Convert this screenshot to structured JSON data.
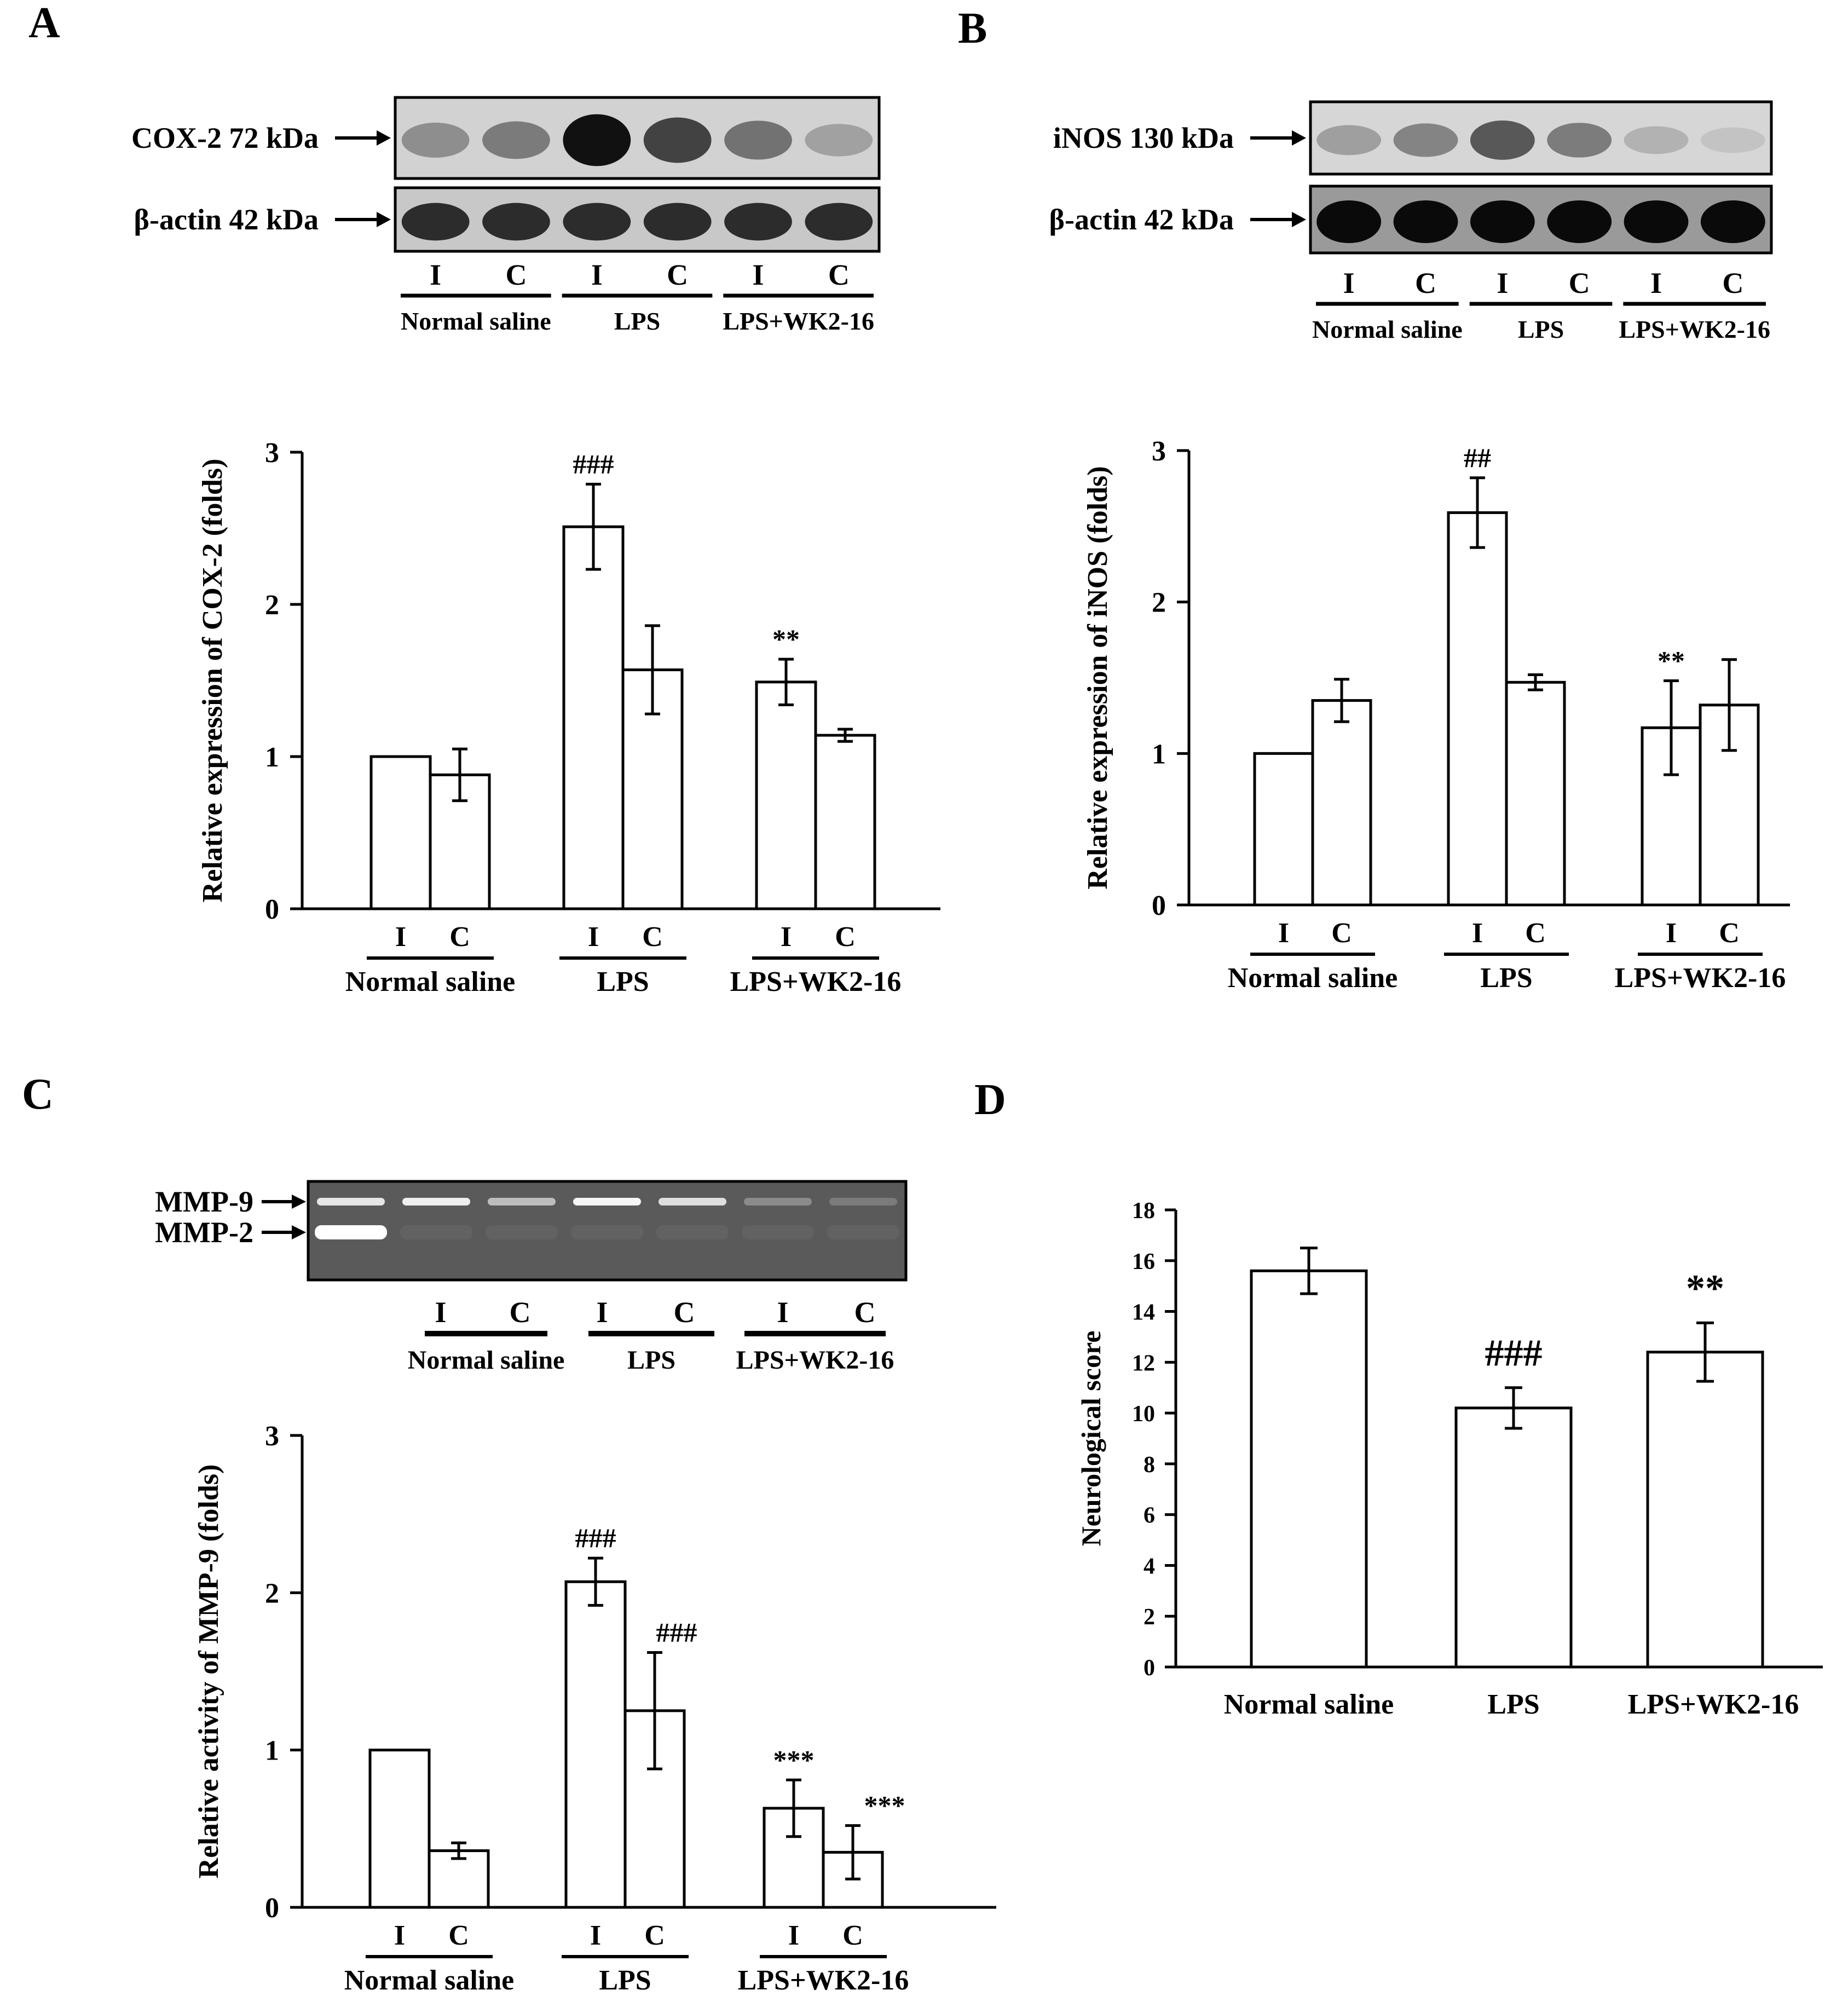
{
  "panels": {
    "A": {
      "label": "A",
      "blot": {
        "rows": [
          {
            "label": "COX-2 72 kDa",
            "intensities": [
              0.35,
              0.45,
              1.0,
              0.75,
              0.5,
              0.25
            ],
            "bg": "#d2d2d2",
            "band": "#111111"
          },
          {
            "label": "β-actin 42 kDa",
            "intensities": [
              0.85,
              0.85,
              0.85,
              0.85,
              0.85,
              0.85
            ],
            "bg": "#c8c8c8",
            "band": "#111111"
          }
        ],
        "lanes": [
          "I",
          "C",
          "I",
          "C",
          "I",
          "C"
        ],
        "groups": [
          "Normal saline",
          "LPS",
          "LPS+WK2-16"
        ]
      }
    },
    "B": {
      "label": "B",
      "blot": {
        "rows": [
          {
            "label": "iNOS 130 kDa",
            "intensities": [
              0.3,
              0.45,
              0.7,
              0.5,
              0.2,
              0.1
            ],
            "bg": "#d6d6d6",
            "band": "#222222"
          },
          {
            "label": "β-actin 42 kDa",
            "intensities": [
              1.0,
              1.0,
              1.0,
              1.0,
              1.0,
              1.0
            ],
            "bg": "#9a9a9a",
            "band": "#0a0a0a"
          }
        ],
        "lanes": [
          "I",
          "C",
          "I",
          "C",
          "I",
          "C"
        ],
        "groups": [
          "Normal saline",
          "LPS",
          "LPS+WK2-16"
        ]
      }
    },
    "C": {
      "label": "C",
      "gel": {
        "labels": [
          "MMP-9",
          "MMP-2"
        ],
        "mmp9": [
          0.85,
          0.9,
          0.6,
          0.95,
          0.8,
          0.3,
          0.2
        ],
        "mmp2": [
          1.0,
          0.05,
          0.05,
          0.05,
          0.05,
          0.05,
          0.05
        ],
        "lanes": [
          "I",
          "C",
          "I",
          "C",
          "I",
          "C"
        ],
        "groups": [
          "Normal saline",
          "LPS",
          "LPS+WK2-16"
        ]
      }
    },
    "D": {
      "label": "D"
    }
  },
  "chart_data": [
    {
      "panel": "A",
      "type": "bar",
      "ylabel": "Relative expression of COX-2 (folds)",
      "ylim": [
        0,
        3
      ],
      "yticks": [
        "0",
        "1",
        "2",
        "3"
      ],
      "groups": [
        "Normal saline",
        "LPS",
        "LPS+WK2-16"
      ],
      "bar_labels": [
        "I",
        "C",
        "I",
        "C",
        "I",
        "C"
      ],
      "values": [
        1.0,
        0.88,
        2.51,
        1.57,
        1.49,
        1.14
      ],
      "errors": [
        0,
        0.17,
        0.28,
        0.29,
        0.15,
        0.04
      ],
      "annotations": [
        "",
        "",
        "###",
        "",
        "**",
        ""
      ]
    },
    {
      "panel": "B",
      "type": "bar",
      "ylabel": "Relative expression of iNOS (folds)",
      "ylim": [
        0,
        3
      ],
      "yticks": [
        "0",
        "1",
        "2",
        "3"
      ],
      "groups": [
        "Normal saline",
        "LPS",
        "LPS+WK2-16"
      ],
      "bar_labels": [
        "I",
        "C",
        "I",
        "C",
        "I",
        "C"
      ],
      "values": [
        1.0,
        1.35,
        2.59,
        1.47,
        1.17,
        1.32
      ],
      "errors": [
        0,
        0.14,
        0.23,
        0.05,
        0.31,
        0.3
      ],
      "annotations": [
        "",
        "",
        "##",
        "",
        "**",
        ""
      ]
    },
    {
      "panel": "C",
      "type": "bar",
      "ylabel": "Relative activity of MMP-9 (folds)",
      "ylim": [
        0,
        3
      ],
      "yticks": [
        "0",
        "1",
        "2",
        "3"
      ],
      "groups": [
        "Normal saline",
        "LPS",
        "LPS+WK2-16"
      ],
      "bar_labels": [
        "I",
        "C",
        "I",
        "C",
        "I",
        "C"
      ],
      "values": [
        1.0,
        0.36,
        2.07,
        1.25,
        0.63,
        0.35
      ],
      "errors": [
        0,
        0.05,
        0.15,
        0.37,
        0.18,
        0.17
      ],
      "annotations": [
        "",
        "",
        "###",
        "###",
        "***",
        "***"
      ]
    },
    {
      "panel": "D",
      "type": "bar",
      "ylabel": "Neurological score",
      "ylim": [
        0,
        18
      ],
      "yticks": [
        "0",
        "2",
        "4",
        "6",
        "8",
        "10",
        "12",
        "14",
        "16",
        "18"
      ],
      "categories": [
        "Normal saline",
        "LPS",
        "LPS+WK2-16"
      ],
      "values": [
        15.6,
        10.2,
        12.4
      ],
      "errors": [
        0.9,
        0.8,
        1.15
      ],
      "annotations": [
        "",
        "###",
        "**"
      ]
    }
  ]
}
